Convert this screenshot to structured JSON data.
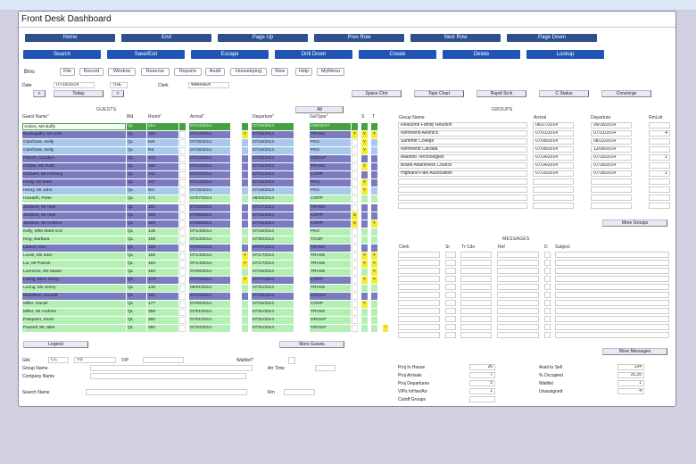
{
  "window": {
    "title": "Front Desk Dashboard"
  },
  "nav_buttons": [
    "Home",
    "End",
    "Page Up",
    "Prev Row",
    "Next Row",
    "Page Down"
  ],
  "action_buttons": [
    "Search",
    "Save/Exit",
    "Escape",
    "Drill Down",
    "Create",
    "Delete",
    "Lookup"
  ],
  "menu": {
    "label": "Bms",
    "items": [
      "File",
      "Record",
      "Window",
      "Reserve",
      "Reports",
      "Audit",
      "Housekping",
      "View",
      "Help",
      "MyMenu"
    ]
  },
  "date_bar": {
    "date_label": "Date",
    "date_value": "07/15/2014",
    "day_value": "TUE",
    "clerk_label": "Clerk",
    "clerk_value": "WARREN",
    "prev_label": "<",
    "today_label": "Today",
    "next_label": ">"
  },
  "quick_buttons": [
    "Space Chrt",
    "Tape Chart",
    "Rapid Srch",
    "C Status",
    "Concierge"
  ],
  "guests": {
    "title": "GUESTS",
    "all_label": "All",
    "headers": {
      "name": "Guest Name\"",
      "bld": "Bld",
      "room": "Room\"",
      "arrival": "Arrival\"",
      "departure": "Departure\"",
      "gsttype": "GstType\"",
      "s": "S",
      "t": "T"
    },
    "rows": [
      {
        "name": "Ardine, Ms Buffy",
        "bld": "QL",
        "room": "254",
        "arrival": "07/14/2014",
        "arrflag": "",
        "departure": "07/16/2014",
        "type": "OWNGST",
        "tflag": "",
        "s": "",
        "t": "",
        "color": "dkgreen"
      },
      {
        "name": "Banbagallo, Mr Arsh",
        "bld": "QL",
        "room": "155",
        "arrival": "07/14/2014",
        "arrflag": "Y",
        "departure": "07/16/2014",
        "type": "TRANS",
        "tflag": "T",
        "s": "Y",
        "t": "Y",
        "color": "purple"
      },
      {
        "name": "Carefoote, Kelly",
        "bld": "QL",
        "room": "KM",
        "arrival": "07/15/2014",
        "arrflag": "",
        "departure": "07/16/2014",
        "type": "PKG",
        "tflag": "",
        "s": "Y",
        "t": "",
        "color": "blue"
      },
      {
        "name": "Carefoote, Kelly",
        "bld": "QL",
        "room": "RK",
        "arrival": "07/15/2014",
        "arrflag": "",
        "departure": "07/16/2014",
        "type": "PKG",
        "tflag": "",
        "s": "Y",
        "t": "",
        "color": "blue"
      },
      {
        "name": "French, Carolyn",
        "bld": "QL",
        "room": "143",
        "arrival": "07/12/2014",
        "arrflag": "",
        "departure": "07/20/2014",
        "type": "GROUP",
        "tflag": "",
        "s": "",
        "t": "",
        "color": "purple"
      },
      {
        "name": "Grable, Ms Ruth",
        "bld": "QL",
        "room": "160",
        "arrival": "07/14/2014",
        "arrflag": "",
        "departure": "07/16/2014",
        "type": "TRANS",
        "tflag": "",
        "s": "Y",
        "t": "",
        "color": "purple"
      },
      {
        "name": "Graham, Mr Anthony",
        "bld": "QL",
        "room": "141",
        "arrival": "07/07/2014",
        "arrflag": "",
        "departure": "07/21/2014",
        "type": "CORP",
        "tflag": "",
        "s": "",
        "t": "",
        "color": "purple"
      },
      {
        "name": "Healy, Mr Mark",
        "bld": "QL",
        "room": "147",
        "arrival": "07/14/2014",
        "arrflag": "",
        "departure": "07/15/2014",
        "type": "PKG",
        "tflag": "",
        "s": "Y",
        "t": "",
        "color": "purple"
      },
      {
        "name": "Henry, Mr John",
        "bld": "QL",
        "room": "SG",
        "arrival": "07/15/2014",
        "arrflag": "",
        "departure": "07/18/2014",
        "type": "PKG",
        "tflag": "",
        "s": "Y",
        "t": "",
        "color": "blue"
      },
      {
        "name": "Howarth, Peter",
        "bld": "QL",
        "room": "171",
        "arrival": "07/07/2014",
        "arrflag": "",
        "departure": "08/06/2014",
        "type": "CORP",
        "tflag": "",
        "s": "",
        "t": "",
        "color": "green"
      },
      {
        "name": "Jackson, Mr Alan",
        "bld": "QL",
        "room": "151",
        "arrival": "07/15/2014",
        "arrflag": "",
        "departure": "07/17/2014",
        "type": "TRANS",
        "tflag": "",
        "s": "",
        "t": "",
        "color": "purple"
      },
      {
        "name": "Jackson, Mr Alan",
        "bld": "QL",
        "room": "169",
        "arrival": "07/08/2014",
        "arrflag": "",
        "departure": "07/15/2014",
        "type": "CORP",
        "tflag": "S",
        "s": "",
        "t": "",
        "color": "purple"
      },
      {
        "name": "Jackson, Mr Andrew",
        "bld": "QL",
        "room": "169",
        "arrival": "07/08/2014",
        "arrflag": "",
        "departure": "07/15/2014",
        "type": "CORP",
        "tflag": "S",
        "s": "",
        "t": "Y",
        "color": "purple"
      },
      {
        "name": "Kelly, M/M Mark And",
        "bld": "QL",
        "room": "145",
        "arrival": "07/14/2014",
        "arrflag": "",
        "departure": "07/15/2014",
        "type": "PKG",
        "tflag": "",
        "s": "",
        "t": "",
        "color": "green"
      },
      {
        "name": "King, Barbara",
        "bld": "QL",
        "room": "158",
        "arrival": "07/13/2014",
        "arrflag": "",
        "departure": "07/20/2014",
        "type": "TOUR",
        "tflag": "",
        "s": "",
        "t": "",
        "color": "green"
      },
      {
        "name": "Larson, Don",
        "bld": "QL",
        "room": "159",
        "arrival": "07/15/2014",
        "arrflag": "",
        "departure": "07/17/2014",
        "type": "TRANS",
        "tflag": "",
        "s": "",
        "t": "",
        "color": "purple"
      },
      {
        "name": "Lewis, Ms Sam",
        "bld": "QL",
        "room": "156",
        "arrival": "07/14/2014",
        "arrflag": "Y",
        "departure": "07/17/2014",
        "type": "TRANS",
        "tflag": "",
        "s": "Y",
        "t": "Y",
        "color": "green"
      },
      {
        "name": "Liu, Mr Patrick",
        "bld": "QL",
        "room": "164",
        "arrival": "07/14/2014",
        "arrflag": "Y",
        "departure": "07/17/2014",
        "type": "TRANS",
        "tflag": "",
        "s": "Y",
        "t": "Y",
        "color": "green"
      },
      {
        "name": "Lorenzini, Ms Masar",
        "bld": "QL",
        "room": "153",
        "arrival": "07/09/2014",
        "arrflag": "",
        "departure": "07/16/2014",
        "type": "TRANS",
        "tflag": "",
        "s": "",
        "t": "Y",
        "color": "green"
      },
      {
        "name": "Luong, Miss Jenny",
        "bld": "QL",
        "room": "179",
        "arrival": "07/14/2014",
        "arrflag": "Y",
        "departure": "07/17/2014",
        "type": "CORP",
        "tflag": "",
        "s": "Y",
        "t": "Y",
        "color": "purple"
      },
      {
        "name": "Luong, Ms Jenny",
        "bld": "QL",
        "room": "146",
        "arrival": "06/01/2014",
        "arrflag": "",
        "departure": "07/31/2014",
        "type": "TRANS",
        "tflag": "",
        "s": "",
        "t": "",
        "color": "green"
      },
      {
        "name": "Modellani, Donald",
        "bld": "QL",
        "room": "151",
        "arrival": "07/14/2014",
        "arrflag": "",
        "departure": "07/15/2014",
        "type": "GROUP",
        "tflag": "",
        "s": "",
        "t": "",
        "color": "purple"
      },
      {
        "name": "Miller, Daniel",
        "bld": "QL",
        "room": "177",
        "arrival": "07/08/2014",
        "arrflag": "",
        "departure": "07/15/2014",
        "type": "CORP",
        "tflag": "",
        "s": "Y",
        "t": "",
        "color": "green"
      },
      {
        "name": "Miller, Mr Andrew",
        "bld": "QL",
        "room": "356",
        "arrival": "07/01/2014",
        "arrflag": "",
        "departure": "07/31/2014",
        "type": "TRANS",
        "tflag": "",
        "s": "",
        "t": "",
        "color": "green"
      },
      {
        "name": "Pasquino, Kevin",
        "bld": "QL",
        "room": "360",
        "arrival": "07/01/2014",
        "arrflag": "",
        "departure": "07/31/2014",
        "type": "GROUP",
        "tflag": "",
        "s": "",
        "t": "",
        "color": "green"
      },
      {
        "name": "Pausell, Mr Jake",
        "bld": "QL",
        "room": "350",
        "arrival": "07/10/2014",
        "arrflag": "",
        "departure": "07/31/2014",
        "type": "GROUP",
        "tflag": "",
        "s": "",
        "t": "",
        "color": "green",
        "extra": "*"
      }
    ],
    "legend_label": "Legend",
    "more_label": "More Guests"
  },
  "groups": {
    "title": "GROUPS",
    "headers": {
      "name": "Group Name",
      "arrival": "Arrival",
      "departure": "Departure",
      "rmlist": "RmList"
    },
    "rows": [
      {
        "name": "Reasume Family Reunion",
        "arrival": "06/27/2014",
        "departure": "09/18/2014",
        "rmlist": ""
      },
      {
        "name": "Northwind Avionics",
        "arrival": "07/01/2014",
        "departure": "07/31/2014",
        "rmlist": "4"
      },
      {
        "name": "Summer College",
        "arrival": "07/09/2014",
        "departure": "08/22/2014",
        "rmlist": ""
      },
      {
        "name": "Northwind Canada",
        "arrival": "07/09/2014",
        "departure": "12/09/2014",
        "rmlist": ""
      },
      {
        "name": "Maestro Technologies",
        "arrival": "07/14/2014",
        "departure": "07/15/2014",
        "rmlist": "1"
      },
      {
        "name": "Brand Awareness Council",
        "arrival": "07/14/2014",
        "departure": "07/16/2014",
        "rmlist": ""
      },
      {
        "name": "Highland Park Association",
        "arrival": "07/15/2014",
        "departure": "07/18/2014",
        "rmlist": "1"
      },
      {
        "name": "",
        "arrival": "",
        "departure": "",
        "rmlist": ""
      },
      {
        "name": "",
        "arrival": "",
        "departure": "",
        "rmlist": ""
      },
      {
        "name": "",
        "arrival": "",
        "departure": "",
        "rmlist": ""
      },
      {
        "name": "",
        "arrival": "",
        "departure": "",
        "rmlist": ""
      }
    ],
    "more_label": "More Groups"
  },
  "messages": {
    "title": "MESSAGES",
    "headers": {
      "clerk": "Clerk",
      "sr": "Sr",
      "trcde": "Tr Cde",
      "ref": "Ref",
      "d": "D",
      "subject": "Subject"
    },
    "row_count": 11,
    "more_label": "More Messages"
  },
  "detail": {
    "gtd_label": "Gtd.",
    "gtd_value": "CC",
    "card_value": "VS",
    "vip_label": "VIP",
    "vip_value": "",
    "waitlist_label": "Waitlist?",
    "group_name_label": "Group Name",
    "group_name_value": "",
    "arr_time_label": "Arr Time",
    "arr_time_value": "",
    "company_name_label": "Company Name",
    "company_name_value": "",
    "search_name_label": "Search Name",
    "search_name_value": "",
    "rm_label": "Rm",
    "rm_value": ""
  },
  "stats": {
    "left": [
      {
        "label": "Proj In House",
        "value": "26"
      },
      {
        "label": "Proj Arrivals",
        "value": "7"
      },
      {
        "label": "Proj Departures",
        "value": "5"
      },
      {
        "label": "VIPs InHse/Arr",
        "value": "1"
      },
      {
        "label": "Cutoff Groups",
        "value": ""
      }
    ],
    "right": [
      {
        "label": "Avail to Sell",
        "value": "134"
      },
      {
        "label": "% Occupied",
        "value": "16.25"
      },
      {
        "label": "Waitlist",
        "value": "1"
      },
      {
        "label": "Unassigned",
        "value": "4"
      }
    ]
  },
  "colors": {
    "nav_button": "#2f4f8f",
    "action_button": "#2155b5",
    "row_purple": "#7b7bbf",
    "row_blue": "#a8c8ec",
    "row_green": "#b4f0b4",
    "row_current": "#44a040",
    "flag_yellow": "#f2ec30"
  }
}
